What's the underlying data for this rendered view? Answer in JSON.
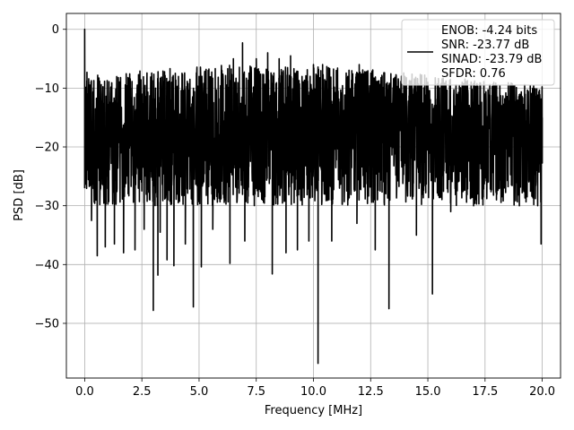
{
  "chart_data": {
    "type": "line",
    "title": "",
    "xlabel": "Frequency [MHz]",
    "ylabel": "PSD [dB]",
    "xlim": [
      -0.8,
      20.8
    ],
    "ylim": [
      -59.3,
      2.7
    ],
    "xticks": [
      0.0,
      2.5,
      5.0,
      7.5,
      10.0,
      12.5,
      15.0,
      17.5,
      20.0
    ],
    "xtick_labels": [
      "0.0",
      "2.5",
      "5.0",
      "7.5",
      "10.0",
      "12.5",
      "15.0",
      "17.5",
      "20.0"
    ],
    "yticks": [
      0,
      -10,
      -20,
      -30,
      -40,
      -50
    ],
    "ytick_labels": [
      "0",
      "−10",
      "−20",
      "−30",
      "−40",
      "−50"
    ],
    "grid": true,
    "legend_position": "top-right",
    "series": [
      {
        "color": "#000000",
        "legend": [
          "ENOB: -4.24 bits",
          "SNR: -23.77 dB",
          "SINAD: -23.79 dB",
          "SFDR: 0.76"
        ],
        "x_range": [
          0,
          20
        ],
        "y_typical_range": [
          -30,
          -8
        ],
        "points": [
          [
            0.0,
            0.0
          ],
          [
            0.05,
            -25
          ],
          [
            0.1,
            -7.3
          ],
          [
            0.15,
            -24
          ],
          [
            0.2,
            -12
          ],
          [
            0.3,
            -32.5
          ],
          [
            0.45,
            -20
          ],
          [
            0.55,
            -38.5
          ],
          [
            0.9,
            -37
          ],
          [
            1.0,
            -14
          ],
          [
            1.3,
            -36.5
          ],
          [
            1.5,
            -12
          ],
          [
            1.7,
            -38
          ],
          [
            2.0,
            -10
          ],
          [
            2.2,
            -37.5
          ],
          [
            2.5,
            -11
          ],
          [
            2.6,
            -34
          ],
          [
            2.85,
            -29
          ],
          [
            3.0,
            -47.8
          ],
          [
            3.1,
            -10
          ],
          [
            3.2,
            -41.8
          ],
          [
            3.3,
            -34.5
          ],
          [
            3.5,
            -10
          ],
          [
            3.6,
            -39.2
          ],
          [
            3.8,
            -9
          ],
          [
            3.9,
            -40.2
          ],
          [
            4.1,
            -8
          ],
          [
            4.4,
            -36.5
          ],
          [
            4.6,
            -8.5
          ],
          [
            4.75,
            -47.2
          ],
          [
            5.0,
            -8
          ],
          [
            5.1,
            -40.4
          ],
          [
            5.4,
            -7
          ],
          [
            5.6,
            -34
          ],
          [
            6.0,
            -7
          ],
          [
            6.35,
            -39.8
          ],
          [
            6.5,
            -5
          ],
          [
            6.9,
            -2.3
          ],
          [
            7.0,
            -36
          ],
          [
            7.5,
            -5
          ],
          [
            7.8,
            -28
          ],
          [
            8.0,
            -4
          ],
          [
            8.2,
            -41.6
          ],
          [
            8.5,
            -5
          ],
          [
            8.8,
            -38
          ],
          [
            9.0,
            -4.5
          ],
          [
            9.3,
            -37.5
          ],
          [
            9.5,
            -8
          ],
          [
            9.8,
            -36
          ],
          [
            10.0,
            -6
          ],
          [
            10.2,
            -56.8
          ],
          [
            10.4,
            -6
          ],
          [
            10.8,
            -36
          ],
          [
            11.0,
            -7
          ],
          [
            11.5,
            -8
          ],
          [
            11.9,
            -33
          ],
          [
            12.0,
            -6
          ],
          [
            12.5,
            -11
          ],
          [
            12.7,
            -37.5
          ],
          [
            13.0,
            -8
          ],
          [
            13.3,
            -47.5
          ],
          [
            13.5,
            -9
          ],
          [
            14.0,
            -8
          ],
          [
            14.5,
            -35
          ],
          [
            15.0,
            -9
          ],
          [
            15.2,
            -45
          ],
          [
            15.5,
            -10
          ],
          [
            16.0,
            -31
          ],
          [
            16.5,
            -9
          ],
          [
            17.0,
            -30
          ],
          [
            17.5,
            -11
          ],
          [
            18.0,
            -29
          ],
          [
            18.5,
            -12
          ],
          [
            19.0,
            -30
          ],
          [
            19.5,
            -11
          ],
          [
            19.95,
            -36.5
          ],
          [
            20.0,
            -15
          ]
        ]
      }
    ]
  }
}
